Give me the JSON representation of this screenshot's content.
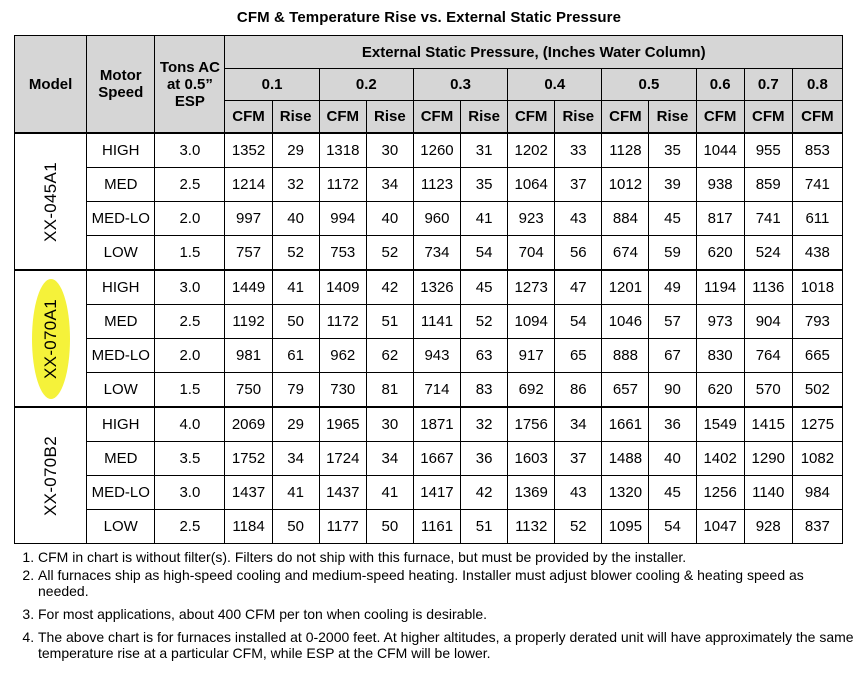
{
  "title": "CFM & Temperature Rise vs. External Static Pressure",
  "headers": {
    "model": "Model",
    "motor_speed": "Motor Speed",
    "tons": "Tons AC at 0.5” ESP",
    "esp": "External Static Pressure, (Inches Water Column)",
    "pressures": [
      "0.1",
      "0.2",
      "0.3",
      "0.4",
      "0.5",
      "0.6",
      "0.7",
      "0.8"
    ],
    "cfm": "CFM",
    "rise": "Rise"
  },
  "models": [
    {
      "name": "XX-045A1",
      "highlighted": false,
      "rows": [
        {
          "speed": "HIGH",
          "tons": "3.0",
          "values": [
            "1352",
            "29",
            "1318",
            "30",
            "1260",
            "31",
            "1202",
            "33",
            "1128",
            "35",
            "1044",
            "955",
            "853"
          ]
        },
        {
          "speed": "MED",
          "tons": "2.5",
          "values": [
            "1214",
            "32",
            "1172",
            "34",
            "1123",
            "35",
            "1064",
            "37",
            "1012",
            "39",
            "938",
            "859",
            "741"
          ]
        },
        {
          "speed": "MED-LO",
          "tons": "2.0",
          "values": [
            "997",
            "40",
            "994",
            "40",
            "960",
            "41",
            "923",
            "43",
            "884",
            "45",
            "817",
            "741",
            "611"
          ]
        },
        {
          "speed": "LOW",
          "tons": "1.5",
          "values": [
            "757",
            "52",
            "753",
            "52",
            "734",
            "54",
            "704",
            "56",
            "674",
            "59",
            "620",
            "524",
            "438"
          ]
        }
      ]
    },
    {
      "name": "XX-070A1",
      "highlighted": true,
      "highlight_color": "#f5f23a",
      "rows": [
        {
          "speed": "HIGH",
          "tons": "3.0",
          "values": [
            "1449",
            "41",
            "1409",
            "42",
            "1326",
            "45",
            "1273",
            "47",
            "1201",
            "49",
            "1194",
            "1136",
            "1018"
          ]
        },
        {
          "speed": "MED",
          "tons": "2.5",
          "values": [
            "1192",
            "50",
            "1172",
            "51",
            "1141",
            "52",
            "1094",
            "54",
            "1046",
            "57",
            "973",
            "904",
            "793"
          ]
        },
        {
          "speed": "MED-LO",
          "tons": "2.0",
          "values": [
            "981",
            "61",
            "962",
            "62",
            "943",
            "63",
            "917",
            "65",
            "888",
            "67",
            "830",
            "764",
            "665"
          ]
        },
        {
          "speed": "LOW",
          "tons": "1.5",
          "values": [
            "750",
            "79",
            "730",
            "81",
            "714",
            "83",
            "692",
            "86",
            "657",
            "90",
            "620",
            "570",
            "502"
          ]
        }
      ]
    },
    {
      "name": "XX-070B2",
      "highlighted": false,
      "rows": [
        {
          "speed": "HIGH",
          "tons": "4.0",
          "values": [
            "2069",
            "29",
            "1965",
            "30",
            "1871",
            "32",
            "1756",
            "34",
            "1661",
            "36",
            "1549",
            "1415",
            "1275"
          ]
        },
        {
          "speed": "MED",
          "tons": "3.5",
          "values": [
            "1752",
            "34",
            "1724",
            "34",
            "1667",
            "36",
            "1603",
            "37",
            "1488",
            "40",
            "1402",
            "1290",
            "1082"
          ]
        },
        {
          "speed": "MED-LO",
          "tons": "3.0",
          "values": [
            "1437",
            "41",
            "1437",
            "41",
            "1417",
            "42",
            "1369",
            "43",
            "1320",
            "45",
            "1256",
            "1140",
            "984"
          ]
        },
        {
          "speed": "LOW",
          "tons": "2.5",
          "values": [
            "1184",
            "50",
            "1177",
            "50",
            "1161",
            "51",
            "1132",
            "52",
            "1095",
            "54",
            "1047",
            "928",
            "837"
          ]
        }
      ]
    }
  ],
  "notes": [
    "CFM in chart is without filter(s). Filters do not ship with this furnace, but must be provided by the installer.",
    "All furnaces ship as high-speed cooling and medium-speed heating. Installer must adjust blower cooling & heating speed as needed.",
    "For most applications, about 400 CFM per ton when cooling is desirable.",
    "The above chart is for furnaces installed at 0-2000 feet. At higher altitudes, a properly derated unit will have approximately the same temperature rise at a particular CFM, while ESP at the CFM will be lower."
  ],
  "colors": {
    "header_bg": "#d6d6d6",
    "highlight": "#f5f23a"
  }
}
